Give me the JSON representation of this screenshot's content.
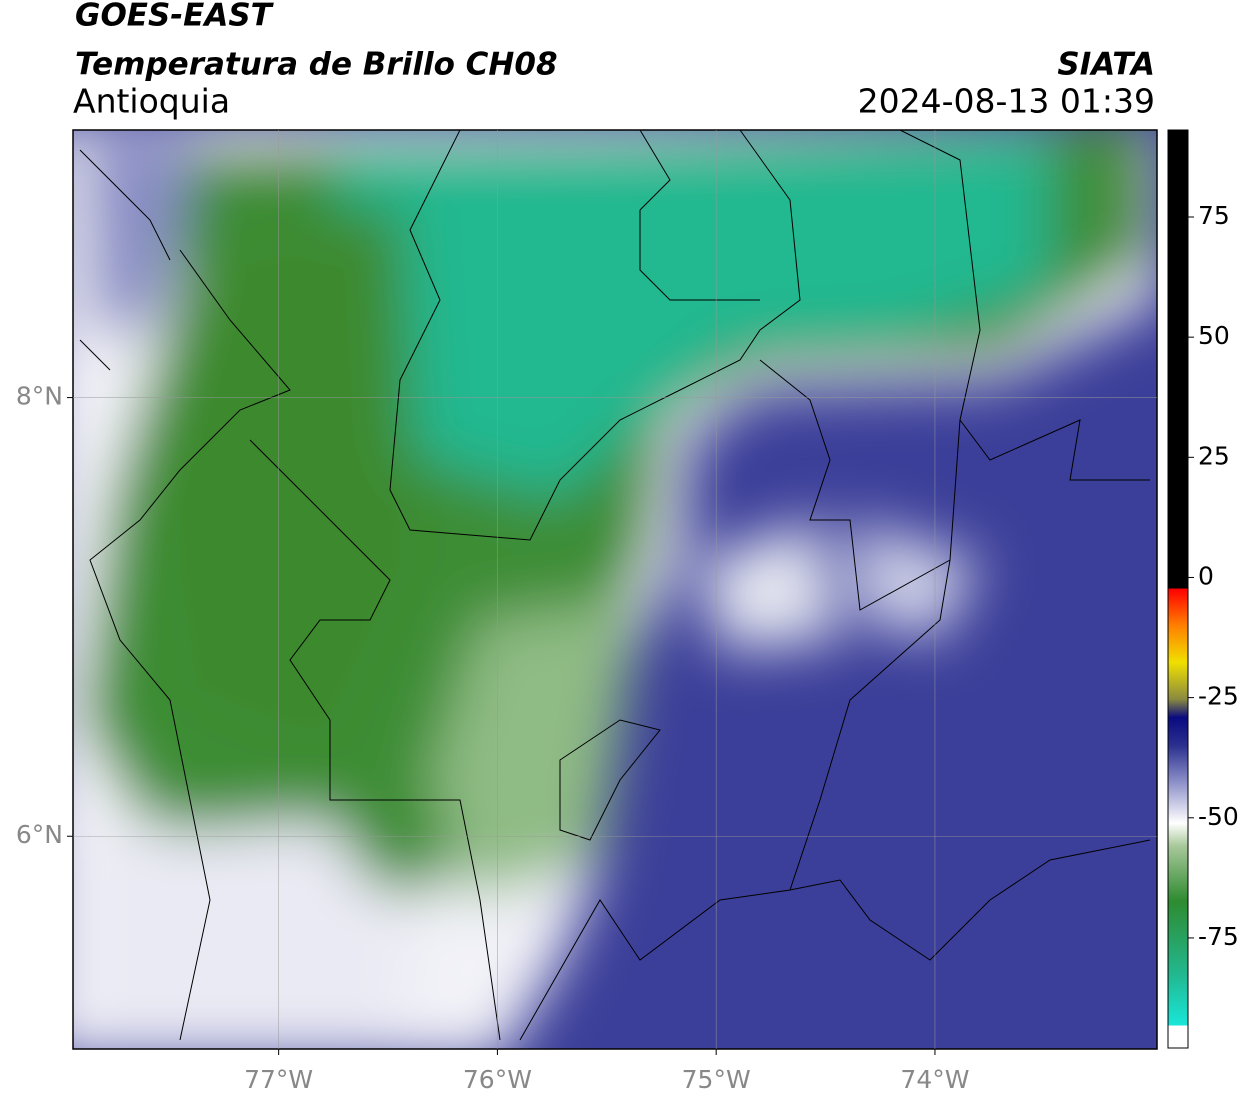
{
  "header": {
    "title": "GOES-EAST",
    "subtitle": "Temperatura de Brillo CH08",
    "region": "Antioquia",
    "source": "SIATA",
    "datetime": "2024-08-13 01:39"
  },
  "map": {
    "xlim": [
      -77.94,
      -72.985
    ],
    "ylim": [
      5.03,
      9.22
    ],
    "xticks": [
      {
        "value": -77,
        "label": "77°W"
      },
      {
        "value": -76,
        "label": "76°W"
      },
      {
        "value": -75,
        "label": "75°W"
      },
      {
        "value": -74,
        "label": "74°W"
      }
    ],
    "yticks": [
      {
        "value": 8,
        "label": "8°N"
      },
      {
        "value": 6,
        "label": "6°N"
      }
    ]
  },
  "colorbar": {
    "lim": [
      -97.9,
      93.1
    ],
    "ticks": [
      75,
      50,
      25,
      0,
      -25,
      -50,
      -75
    ]
  }
}
